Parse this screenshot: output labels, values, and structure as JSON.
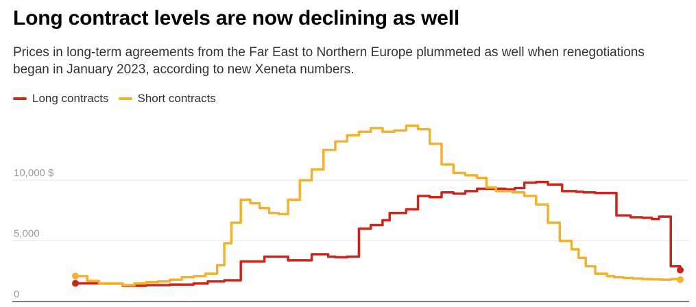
{
  "title": "Long contract levels are now declining as well",
  "subtitle": "Prices in long-term agreements from the Far East to Northern Europe plummeted as well when renegotiations began in January 2023, according to new Xeneta numbers.",
  "colors": {
    "long": "#c9261c",
    "short": "#f0b22f"
  },
  "chart_data": {
    "type": "line",
    "title": "Long contract levels are now declining as well",
    "ylim": [
      0,
      15000
    ],
    "yticks": [
      0,
      5000,
      10000
    ],
    "ytick_labels": [
      "0",
      "5,000",
      "10,000 $"
    ],
    "grid": true,
    "legend_position": "top-left",
    "series": [
      {
        "name": "Long contracts",
        "key": "long",
        "x": [
          0,
          3,
          5,
          10,
          20,
          30,
          40,
          50,
          56,
          63,
          70,
          80,
          90,
          100,
          107,
          110,
          115,
          120,
          125,
          130,
          133,
          140,
          145,
          150,
          155,
          160,
          165,
          170,
          174,
          178,
          182,
          186,
          190,
          195,
          200,
          206,
          212,
          215,
          220,
          229,
          235,
          240,
          244,
          247,
          252,
          256
        ],
        "values": [
          1500,
          1500,
          1500,
          1480,
          1300,
          1350,
          1400,
          1480,
          1650,
          1750,
          3300,
          3700,
          3400,
          3900,
          3700,
          3650,
          3700,
          6000,
          6300,
          6700,
          7300,
          7600,
          8700,
          8600,
          9000,
          8900,
          9100,
          9300,
          9300,
          9300,
          9250,
          9350,
          9800,
          9850,
          9650,
          9100,
          9050,
          9000,
          8950,
          7100,
          6950,
          6900,
          6800,
          7000,
          2900,
          2600
        ]
      },
      {
        "name": "Short contracts",
        "key": "short",
        "x": [
          0,
          5,
          10,
          15,
          20,
          25,
          30,
          35,
          40,
          45,
          50,
          55,
          60,
          63,
          66,
          70,
          74,
          78,
          82,
          86,
          90,
          95,
          100,
          105,
          110,
          115,
          120,
          125,
          130,
          135,
          140,
          145,
          150,
          155,
          160,
          165,
          170,
          174,
          178,
          185,
          190,
          195,
          200,
          205,
          210,
          213,
          216,
          220,
          225,
          228,
          232,
          236,
          240,
          244,
          248,
          252,
          256
        ],
        "values": [
          2100,
          1700,
          1500,
          1500,
          1350,
          1500,
          1600,
          1650,
          1800,
          2000,
          2100,
          2300,
          3000,
          4800,
          6500,
          8400,
          8100,
          7700,
          7300,
          7200,
          8400,
          10000,
          10900,
          12500,
          13200,
          13700,
          14000,
          14300,
          14000,
          14100,
          14500,
          14200,
          13000,
          11300,
          10600,
          10400,
          10200,
          9400,
          9100,
          9000,
          8700,
          8000,
          6500,
          5000,
          4300,
          3600,
          2900,
          2300,
          2100,
          2000,
          1950,
          1900,
          1850,
          1820,
          1800,
          1850,
          1800
        ]
      }
    ]
  }
}
